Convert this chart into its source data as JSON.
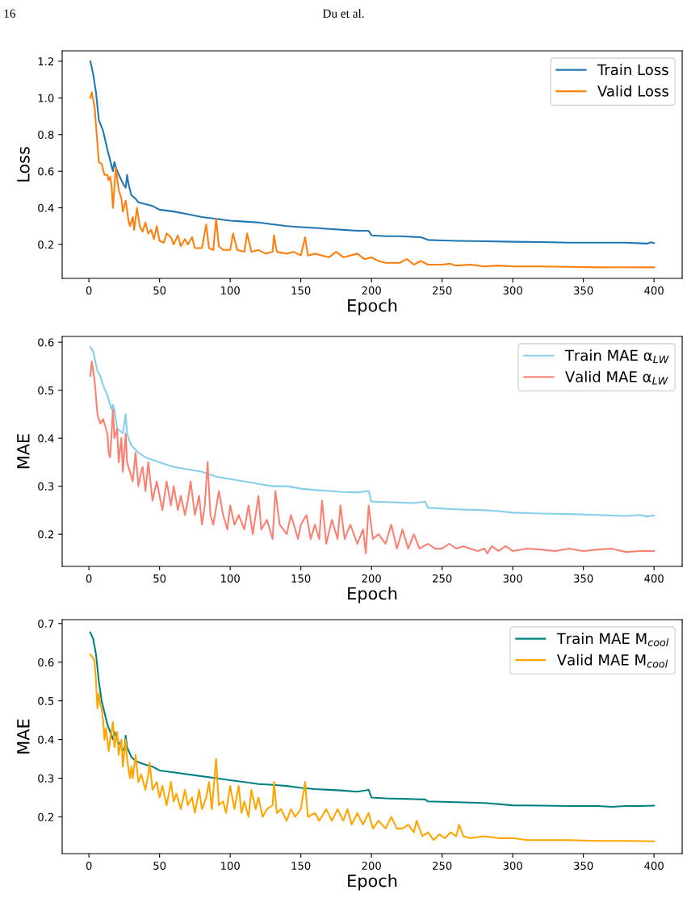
{
  "chart_data": [
    {
      "type": "line",
      "xlabel": "Epoch",
      "ylabel": "Loss",
      "annotations": [
        "16",
        "Du et al."
      ],
      "legend": "top right",
      "grid": false,
      "xlim": [
        -18.95,
        419.95
      ],
      "xticks": [
        0,
        50,
        100,
        150,
        200,
        250,
        300,
        350,
        400
      ],
      "ylim": [
        0.015,
        1.257
      ],
      "yticks": [
        0.2,
        0.4,
        0.6,
        0.8,
        {
          "value": 1,
          "label": "1.0"
        },
        1.2
      ],
      "series": [
        {
          "name": "Train Loss",
          "color": "#1f77b4",
          "x": [
            1,
            3,
            5,
            7,
            10,
            13,
            16,
            17,
            18,
            20,
            23,
            25,
            26,
            27,
            28,
            30,
            33,
            35,
            40,
            45,
            50,
            60,
            70,
            80,
            90,
            100,
            110,
            120,
            130,
            140,
            150,
            160,
            170,
            180,
            190,
            198,
            200,
            210,
            220,
            235,
            240,
            250,
            260,
            280,
            300,
            320,
            340,
            360,
            380,
            395,
            398,
            400
          ],
          "values": [
            1.2,
            1.13,
            1.03,
            0.88,
            0.82,
            0.72,
            0.63,
            0.6,
            0.65,
            0.6,
            0.55,
            0.52,
            0.51,
            0.58,
            0.53,
            0.47,
            0.45,
            0.43,
            0.42,
            0.41,
            0.39,
            0.38,
            0.365,
            0.35,
            0.34,
            0.33,
            0.325,
            0.32,
            0.31,
            0.3,
            0.295,
            0.29,
            0.285,
            0.28,
            0.275,
            0.275,
            0.25,
            0.245,
            0.245,
            0.24,
            0.225,
            0.222,
            0.22,
            0.218,
            0.215,
            0.213,
            0.21,
            0.21,
            0.21,
            0.205,
            0.212,
            0.208
          ]
        },
        {
          "name": "Valid Loss",
          "color": "#ff7f0e",
          "x": [
            1,
            2,
            4,
            6,
            7,
            9,
            11,
            13,
            14,
            15,
            16,
            17,
            19,
            21,
            23,
            24,
            26,
            28,
            29,
            31,
            32,
            34,
            36,
            38,
            40,
            42,
            44,
            46,
            48,
            50,
            53,
            55,
            58,
            60,
            63,
            65,
            68,
            70,
            73,
            75,
            80,
            83,
            85,
            88,
            90,
            92,
            95,
            100,
            102,
            105,
            110,
            112,
            115,
            120,
            125,
            130,
            131,
            133,
            140,
            145,
            150,
            153,
            155,
            160,
            170,
            175,
            180,
            190,
            195,
            200,
            205,
            210,
            220,
            225,
            230,
            235,
            240,
            250,
            255,
            260,
            270,
            280,
            290,
            300,
            320,
            340,
            360,
            380,
            400
          ],
          "values": [
            1.0,
            1.03,
            0.95,
            0.75,
            0.65,
            0.64,
            0.58,
            0.58,
            0.55,
            0.57,
            0.52,
            0.4,
            0.62,
            0.5,
            0.45,
            0.38,
            0.44,
            0.33,
            0.3,
            0.35,
            0.28,
            0.4,
            0.3,
            0.27,
            0.32,
            0.26,
            0.28,
            0.23,
            0.3,
            0.22,
            0.21,
            0.26,
            0.24,
            0.2,
            0.25,
            0.19,
            0.23,
            0.2,
            0.24,
            0.18,
            0.18,
            0.31,
            0.18,
            0.17,
            0.34,
            0.19,
            0.17,
            0.17,
            0.26,
            0.17,
            0.16,
            0.26,
            0.16,
            0.17,
            0.15,
            0.16,
            0.25,
            0.16,
            0.15,
            0.16,
            0.14,
            0.24,
            0.14,
            0.15,
            0.13,
            0.16,
            0.13,
            0.15,
            0.12,
            0.13,
            0.11,
            0.1,
            0.1,
            0.12,
            0.09,
            0.11,
            0.09,
            0.09,
            0.095,
            0.085,
            0.09,
            0.08,
            0.085,
            0.08,
            0.08,
            0.078,
            0.075,
            0.076,
            0.075
          ]
        }
      ]
    },
    {
      "type": "line",
      "xlabel": "Epoch",
      "ylabel": "MAE",
      "legend": "top right",
      "grid": false,
      "xlim": [
        -18.95,
        419.95
      ],
      "xticks": [
        0,
        50,
        100,
        150,
        200,
        250,
        300,
        350,
        400
      ],
      "ylim": [
        0.133,
        0.612
      ],
      "yticks": [
        0.2,
        0.3,
        0.4,
        0.5,
        0.6
      ],
      "series": [
        {
          "name": "Train MAE α$_{LW}$",
          "color": "#87ceeb",
          "x": [
            1,
            3,
            6,
            8,
            10,
            13,
            16,
            17,
            18,
            20,
            24,
            26,
            27,
            28,
            30,
            35,
            40,
            45,
            50,
            60,
            70,
            80,
            90,
            100,
            110,
            120,
            130,
            140,
            150,
            160,
            170,
            180,
            190,
            198,
            200,
            210,
            230,
            238,
            240,
            260,
            280,
            290,
            300,
            320,
            340,
            360,
            380,
            390,
            395,
            400
          ],
          "values": [
            0.59,
            0.58,
            0.54,
            0.53,
            0.51,
            0.49,
            0.46,
            0.47,
            0.46,
            0.42,
            0.41,
            0.45,
            0.41,
            0.4,
            0.385,
            0.37,
            0.36,
            0.355,
            0.35,
            0.34,
            0.335,
            0.33,
            0.32,
            0.315,
            0.31,
            0.305,
            0.3,
            0.3,
            0.295,
            0.292,
            0.29,
            0.288,
            0.287,
            0.29,
            0.268,
            0.267,
            0.265,
            0.268,
            0.255,
            0.252,
            0.25,
            0.248,
            0.245,
            0.243,
            0.242,
            0.24,
            0.238,
            0.24,
            0.237,
            0.239
          ]
        },
        {
          "name": "Valid MAE α$_{LW}$",
          "color": "#fa8072",
          "x": [
            1,
            2,
            4,
            6,
            8,
            10,
            12,
            13,
            14,
            15,
            17,
            18,
            20,
            21,
            23,
            24,
            26,
            27,
            29,
            31,
            33,
            35,
            37,
            38,
            40,
            42,
            45,
            48,
            50,
            52,
            55,
            58,
            60,
            63,
            65,
            68,
            70,
            72,
            75,
            78,
            80,
            82,
            84,
            86,
            88,
            92,
            95,
            98,
            100,
            103,
            106,
            110,
            113,
            116,
            120,
            122,
            126,
            130,
            132,
            135,
            140,
            143,
            148,
            150,
            154,
            157,
            160,
            163,
            165,
            168,
            172,
            176,
            178,
            181,
            185,
            190,
            194,
            196,
            198,
            201,
            205,
            210,
            214,
            218,
            222,
            226,
            230,
            234,
            240,
            245,
            250,
            255,
            260,
            265,
            270,
            275,
            280,
            282,
            285,
            290,
            295,
            300,
            310,
            320,
            330,
            340,
            350,
            360,
            370,
            380,
            390,
            400
          ],
          "values": [
            0.53,
            0.56,
            0.52,
            0.45,
            0.43,
            0.44,
            0.42,
            0.41,
            0.37,
            0.36,
            0.46,
            0.4,
            0.42,
            0.35,
            0.4,
            0.33,
            0.41,
            0.35,
            0.33,
            0.31,
            0.37,
            0.3,
            0.33,
            0.34,
            0.29,
            0.35,
            0.27,
            0.31,
            0.28,
            0.25,
            0.31,
            0.26,
            0.3,
            0.25,
            0.28,
            0.24,
            0.27,
            0.31,
            0.24,
            0.28,
            0.22,
            0.26,
            0.35,
            0.24,
            0.22,
            0.29,
            0.24,
            0.21,
            0.26,
            0.22,
            0.24,
            0.21,
            0.26,
            0.2,
            0.28,
            0.21,
            0.23,
            0.19,
            0.29,
            0.22,
            0.2,
            0.24,
            0.19,
            0.22,
            0.24,
            0.19,
            0.22,
            0.19,
            0.27,
            0.18,
            0.23,
            0.19,
            0.26,
            0.19,
            0.22,
            0.18,
            0.21,
            0.16,
            0.26,
            0.19,
            0.2,
            0.18,
            0.22,
            0.17,
            0.21,
            0.17,
            0.2,
            0.17,
            0.18,
            0.17,
            0.17,
            0.18,
            0.17,
            0.175,
            0.17,
            0.165,
            0.17,
            0.16,
            0.175,
            0.165,
            0.175,
            0.165,
            0.17,
            0.168,
            0.165,
            0.17,
            0.165,
            0.168,
            0.17,
            0.163,
            0.165,
            0.165
          ]
        }
      ]
    },
    {
      "type": "line",
      "xlabel": "Epoch",
      "ylabel": "MAE",
      "legend": "top right",
      "grid": false,
      "xlim": [
        -18.95,
        419.95
      ],
      "xticks": [
        0,
        50,
        100,
        150,
        200,
        250,
        300,
        350,
        400
      ],
      "ylim": [
        0.105,
        0.71
      ],
      "yticks": [
        0.2,
        0.3,
        0.4,
        0.5,
        0.6,
        0.7
      ],
      "series": [
        {
          "name": "Train MAE M$_{cool}$",
          "color": "#008080",
          "x": [
            1,
            3,
            5,
            7,
            9,
            11,
            13,
            15,
            17,
            18,
            20,
            23,
            25,
            26,
            27,
            30,
            33,
            36,
            40,
            45,
            50,
            60,
            70,
            80,
            90,
            100,
            110,
            120,
            130,
            140,
            150,
            160,
            170,
            180,
            190,
            198,
            200,
            210,
            230,
            238,
            240,
            260,
            280,
            290,
            300,
            320,
            340,
            360,
            370,
            380,
            390,
            400
          ],
          "values": [
            0.677,
            0.66,
            0.62,
            0.55,
            0.5,
            0.47,
            0.44,
            0.42,
            0.4,
            0.42,
            0.4,
            0.38,
            0.37,
            0.41,
            0.38,
            0.355,
            0.345,
            0.34,
            0.335,
            0.33,
            0.32,
            0.315,
            0.31,
            0.305,
            0.3,
            0.295,
            0.29,
            0.285,
            0.283,
            0.28,
            0.275,
            0.272,
            0.27,
            0.268,
            0.265,
            0.27,
            0.25,
            0.248,
            0.246,
            0.245,
            0.24,
            0.238,
            0.236,
            0.233,
            0.23,
            0.229,
            0.228,
            0.228,
            0.226,
            0.228,
            0.228,
            0.229
          ]
        },
        {
          "name": "Valid MAE M$_{cool}$",
          "color": "#ffa500",
          "x": [
            1,
            3,
            4,
            5,
            6,
            7,
            8,
            9,
            10,
            11,
            12,
            14,
            15,
            17,
            18,
            20,
            21,
            23,
            24,
            26,
            27,
            29,
            30,
            31,
            33,
            35,
            37,
            40,
            42,
            43,
            45,
            48,
            50,
            52,
            55,
            58,
            60,
            62,
            65,
            68,
            70,
            73,
            75,
            78,
            80,
            83,
            85,
            87,
            90,
            92,
            95,
            97,
            100,
            103,
            106,
            108,
            110,
            113,
            115,
            118,
            120,
            123,
            126,
            130,
            131,
            133,
            136,
            140,
            143,
            146,
            150,
            153,
            155,
            160,
            163,
            168,
            172,
            176,
            180,
            183,
            186,
            190,
            194,
            198,
            201,
            205,
            210,
            214,
            218,
            222,
            226,
            230,
            232,
            236,
            240,
            244,
            248,
            252,
            256,
            260,
            262,
            265,
            270,
            280,
            290,
            300,
            310,
            320,
            340,
            360,
            380,
            400
          ],
          "values": [
            0.62,
            0.61,
            0.6,
            0.55,
            0.48,
            0.52,
            0.49,
            0.48,
            0.45,
            0.4,
            0.43,
            0.37,
            0.4,
            0.445,
            0.38,
            0.42,
            0.36,
            0.4,
            0.33,
            0.4,
            0.35,
            0.3,
            0.33,
            0.3,
            0.36,
            0.29,
            0.31,
            0.27,
            0.31,
            0.34,
            0.27,
            0.29,
            0.25,
            0.28,
            0.23,
            0.29,
            0.24,
            0.26,
            0.22,
            0.27,
            0.23,
            0.25,
            0.21,
            0.27,
            0.22,
            0.25,
            0.29,
            0.22,
            0.35,
            0.23,
            0.24,
            0.21,
            0.28,
            0.22,
            0.28,
            0.21,
            0.24,
            0.2,
            0.27,
            0.22,
            0.25,
            0.2,
            0.22,
            0.23,
            0.29,
            0.21,
            0.22,
            0.19,
            0.22,
            0.2,
            0.22,
            0.29,
            0.2,
            0.21,
            0.19,
            0.22,
            0.19,
            0.22,
            0.19,
            0.22,
            0.18,
            0.21,
            0.18,
            0.21,
            0.17,
            0.19,
            0.17,
            0.2,
            0.17,
            0.17,
            0.18,
            0.16,
            0.19,
            0.15,
            0.16,
            0.14,
            0.155,
            0.145,
            0.16,
            0.15,
            0.18,
            0.15,
            0.145,
            0.15,
            0.145,
            0.145,
            0.14,
            0.14,
            0.14,
            0.138,
            0.138,
            0.137
          ]
        }
      ]
    }
  ]
}
